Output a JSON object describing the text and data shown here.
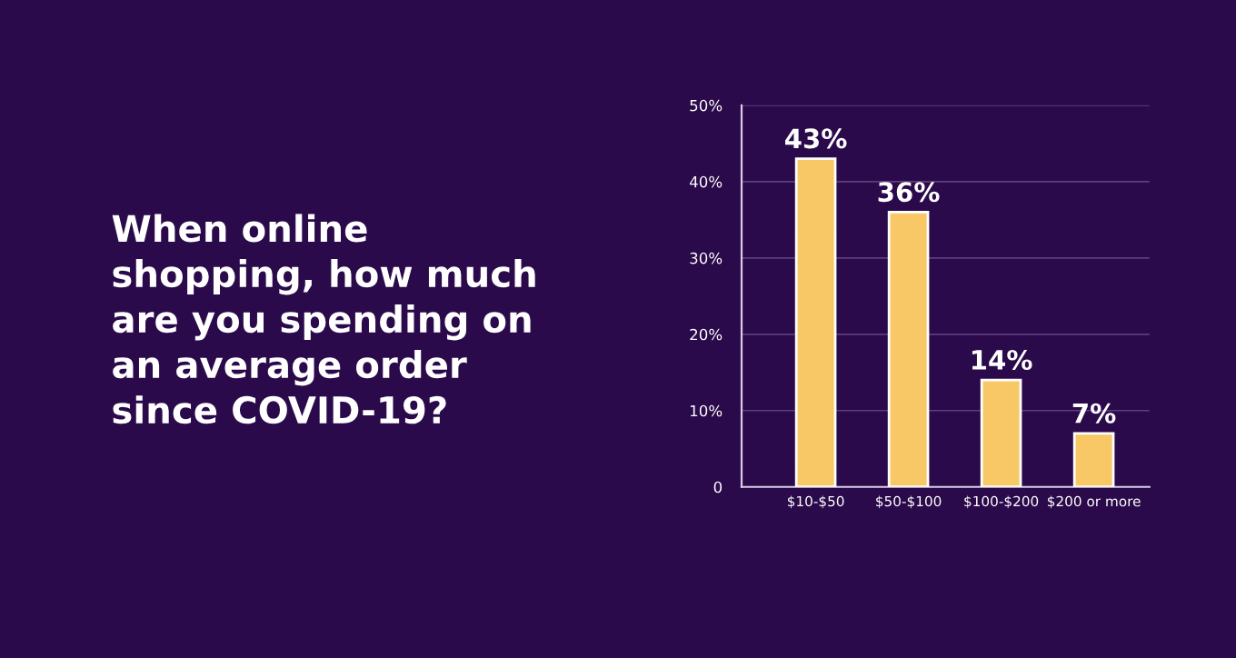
{
  "chart_data": {
    "type": "bar",
    "title": "When online shopping, how much are you spending on an average order since COVID-19?",
    "categories": [
      "$10-$50",
      "$50-$100",
      "$100-$200",
      "$200 or more"
    ],
    "values": [
      43,
      36,
      14,
      7
    ],
    "value_labels": [
      "43%",
      "36%",
      "14%",
      "7%"
    ],
    "color": "#f9c866",
    "ylim": [
      0,
      50
    ],
    "yticks": [
      0,
      {
        "value": 10,
        "label": "10%"
      },
      {
        "value": 20,
        "label": "20%"
      },
      {
        "value": 30,
        "label": "30%"
      },
      {
        "value": 40,
        "label": "40%"
      },
      {
        "value": 50,
        "label": "50%"
      }
    ],
    "grid": "y"
  }
}
